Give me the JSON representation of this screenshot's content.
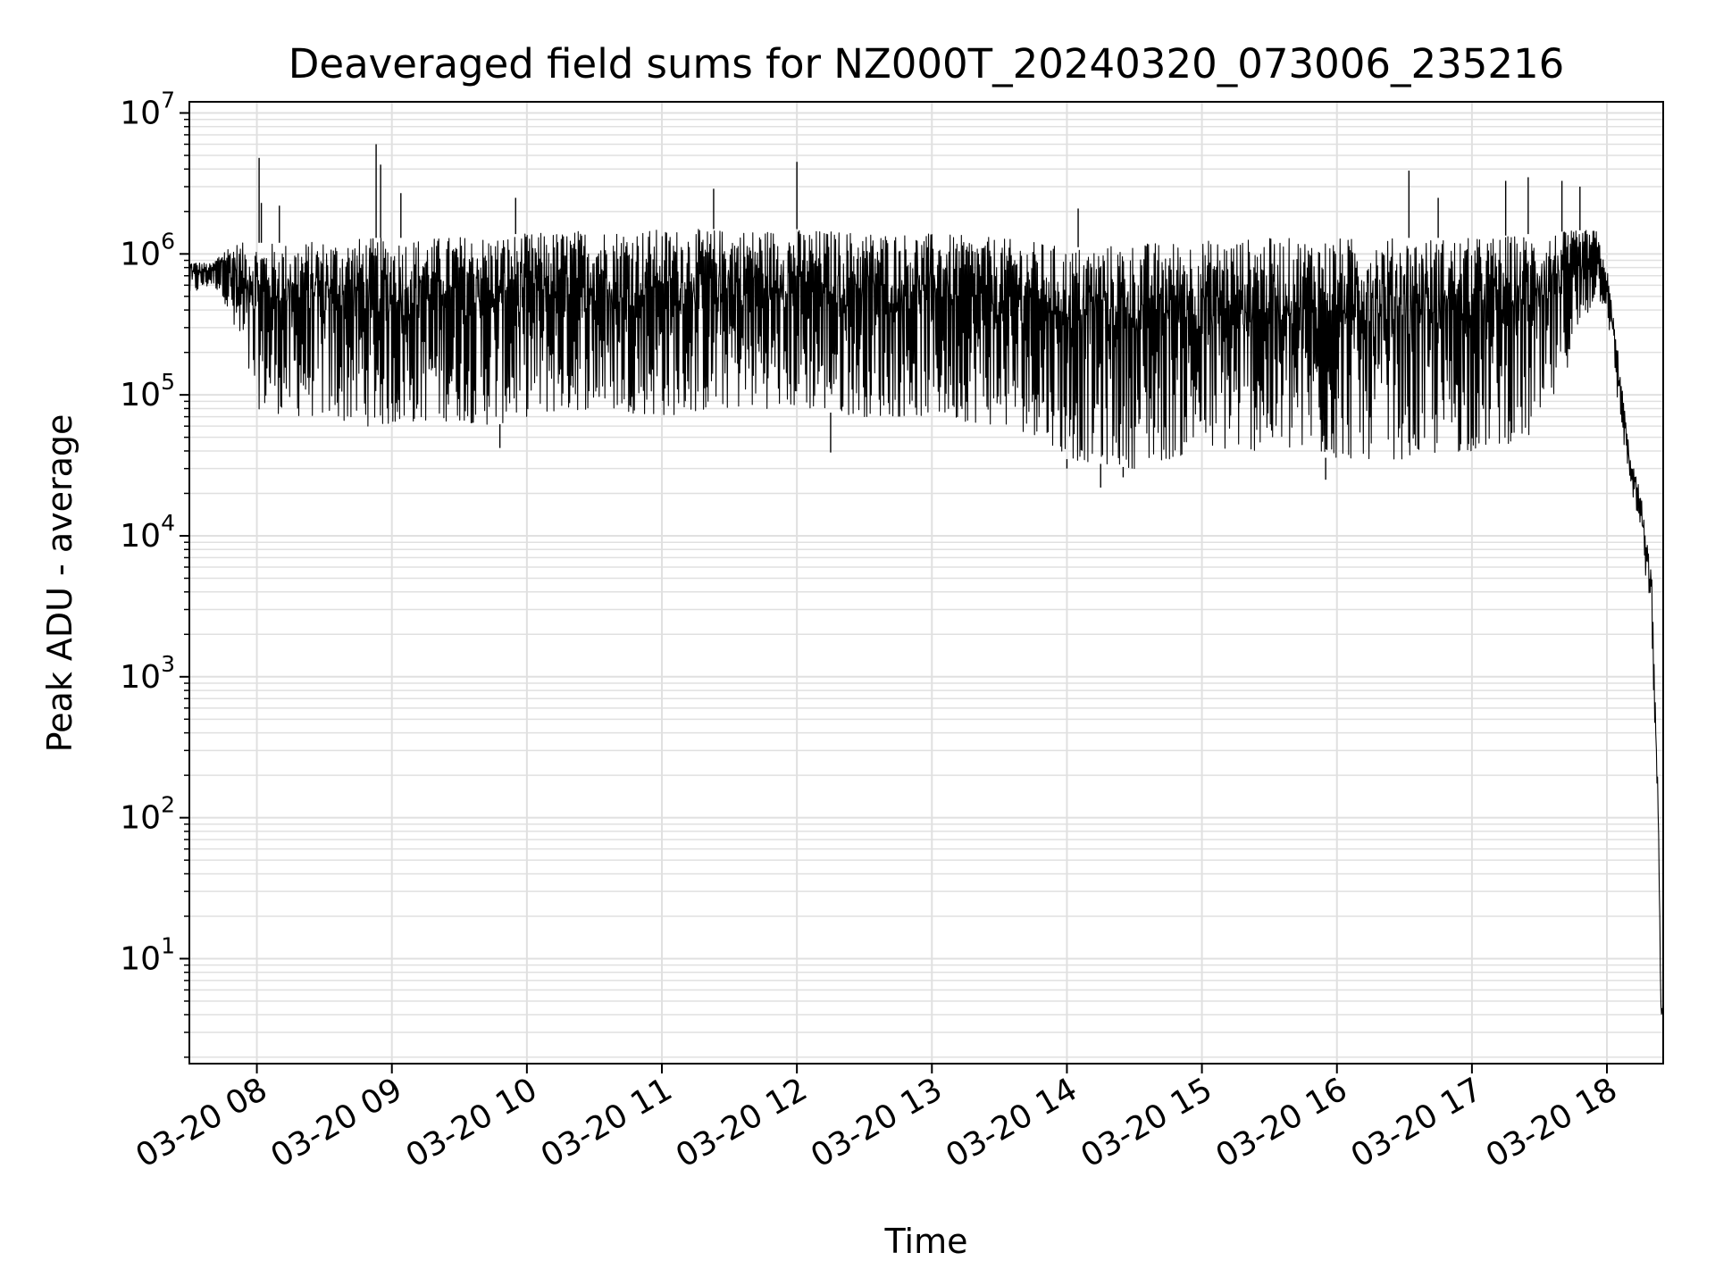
{
  "chart_data": {
    "type": "line",
    "title": "Deaveraged field sums for NZ000T_20240320_073006_235216",
    "xlabel": "Time",
    "ylabel": "Peak ADU - average",
    "yscale": "log",
    "grid": true,
    "line_color": "#000000",
    "grid_color": "#e0e0e0",
    "xlim": [
      "03-20 07:30",
      "03-20 18:25"
    ],
    "ylim": [
      1.8,
      12000000
    ],
    "x_ticks": [
      "03-20 08",
      "03-20 09",
      "03-20 10",
      "03-20 11",
      "03-20 12",
      "03-20 13",
      "03-20 14",
      "03-20 15",
      "03-20 16",
      "03-20 17",
      "03-20 18"
    ],
    "y_ticks": [
      {
        "base": "10",
        "exp": "1",
        "value": 10
      },
      {
        "base": "10",
        "exp": "2",
        "value": 100
      },
      {
        "base": "10",
        "exp": "3",
        "value": 1000
      },
      {
        "base": "10",
        "exp": "4",
        "value": 10000
      },
      {
        "base": "10",
        "exp": "5",
        "value": 100000
      },
      {
        "base": "10",
        "exp": "6",
        "value": 1000000
      },
      {
        "base": "10",
        "exp": "7",
        "value": 10000000
      }
    ],
    "series": [
      {
        "x": [
          "03-20 07:30",
          "03-20 07:40",
          "03-20 07:45",
          "03-20 07:50",
          "03-20 08:00",
          "03-20 08:15",
          "03-20 08:30",
          "03-20 08:45",
          "03-20 09:00",
          "03-20 09:15",
          "03-20 09:30",
          "03-20 09:45",
          "03-20 10:00",
          "03-20 10:30",
          "03-20 11:00",
          "03-20 11:30",
          "03-20 12:00",
          "03-20 12:30",
          "03-20 13:00",
          "03-20 13:30",
          "03-20 13:50",
          "03-20 14:00",
          "03-20 14:30",
          "03-20 15:00",
          "03-20 15:30",
          "03-20 16:00",
          "03-20 16:30",
          "03-20 17:00",
          "03-20 17:30",
          "03-20 17:55",
          "03-20 18:00",
          "03-20 18:05",
          "03-20 18:10",
          "03-20 18:15",
          "03-20 18:20",
          "03-20 18:23",
          "03-20 18:24",
          "03-20 18:25"
        ],
        "upper": [
          900000,
          850000,
          1100000,
          1200000,
          1200000,
          1200000,
          1250000,
          1300000,
          1300000,
          1300000,
          1350000,
          1350000,
          1400000,
          1500000,
          1500000,
          1500000,
          1500000,
          1450000,
          1400000,
          1300000,
          1200000,
          1100000,
          1200000,
          1250000,
          1300000,
          1300000,
          1300000,
          1300000,
          1400000,
          1500000,
          800000,
          200000,
          40000,
          20000,
          5000,
          100,
          5,
          4
        ],
        "lower": [
          500000,
          600000,
          500000,
          250000,
          80000,
          70000,
          70000,
          60000,
          60000,
          65000,
          65000,
          60000,
          70000,
          80000,
          70000,
          80000,
          80000,
          70000,
          70000,
          60000,
          50000,
          35000,
          30000,
          40000,
          40000,
          35000,
          35000,
          40000,
          50000,
          500000,
          400000,
          80000,
          25000,
          10000,
          2000,
          40,
          4,
          4
        ]
      }
    ],
    "spikes": [
      {
        "x": "03-20 08:01",
        "y": 4800000
      },
      {
        "x": "03-20 08:02",
        "y": 2300000
      },
      {
        "x": "03-20 08:10",
        "y": 2200000
      },
      {
        "x": "03-20 08:53",
        "y": 6000000
      },
      {
        "x": "03-20 08:55",
        "y": 4300000
      },
      {
        "x": "03-20 09:04",
        "y": 2700000
      },
      {
        "x": "03-20 09:55",
        "y": 2500000
      },
      {
        "x": "03-20 11:23",
        "y": 2900000
      },
      {
        "x": "03-20 12:00",
        "y": 4500000
      },
      {
        "x": "03-20 14:05",
        "y": 2100000
      },
      {
        "x": "03-20 16:32",
        "y": 3900000
      },
      {
        "x": "03-20 16:45",
        "y": 2500000
      },
      {
        "x": "03-20 17:15",
        "y": 3300000
      },
      {
        "x": "03-20 17:25",
        "y": 3500000
      },
      {
        "x": "03-20 17:40",
        "y": 3300000
      },
      {
        "x": "03-20 17:48",
        "y": 3000000
      }
    ],
    "dips": [
      {
        "x": "03-20 09:48",
        "y": 42000
      },
      {
        "x": "03-20 12:15",
        "y": 39000
      },
      {
        "x": "03-20 14:00",
        "y": 30000
      },
      {
        "x": "03-20 14:15",
        "y": 22000
      },
      {
        "x": "03-20 14:25",
        "y": 26000
      },
      {
        "x": "03-20 15:55",
        "y": 25000
      }
    ]
  }
}
